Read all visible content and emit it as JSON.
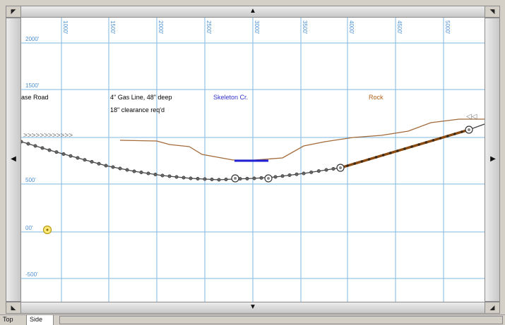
{
  "ui": {
    "tabs": [
      {
        "label": "Top",
        "active": false
      },
      {
        "label": "Side",
        "active": true
      }
    ],
    "icons": {
      "scroll_up": "triangle-up",
      "scroll_down": "triangle-down",
      "scroll_left": "triangle-left",
      "scroll_right": "triangle-right",
      "corner_tl": "corner-arrow-top-left",
      "corner_tr": "corner-arrow-top-right",
      "corner_bl": "corner-arrow-bottom-left",
      "corner_br": "corner-arrow-bottom-right"
    }
  },
  "profile": {
    "x_ticks": [
      {
        "label": "1000'",
        "x": 1000
      },
      {
        "label": "1500'",
        "x": 1500
      },
      {
        "label": "2000'",
        "x": 2000
      },
      {
        "label": "2500'",
        "x": 2500
      },
      {
        "label": "3000'",
        "x": 3000
      },
      {
        "label": "3500'",
        "x": 3500
      },
      {
        "label": "4000'",
        "x": 4000
      },
      {
        "label": "4500'",
        "x": 4500
      },
      {
        "label": "5000'",
        "x": 5000
      }
    ],
    "y_ticks": [
      {
        "label": "2000'",
        "y": 2000
      },
      {
        "label": "1500'",
        "y": 1500
      },
      {
        "label": "500'",
        "y": 500
      },
      {
        "label": "00'",
        "y": 0
      },
      {
        "label": "-500'",
        "y": -500
      }
    ],
    "annotations": [
      {
        "text": "ase Road",
        "color": "#000000"
      },
      {
        "text": "4\" Gas Line, 48\" deep",
        "color": "#000000"
      },
      {
        "text": "18\" clearance req'd",
        "color": "#000000"
      },
      {
        "text": "Skeleton Cr.",
        "color": "#3333cc"
      },
      {
        "text": "Rock",
        "color": "#b06018"
      }
    ],
    "arrow_markers": {
      "right": ">>>>>>>>>>>>",
      "left": "◁◁"
    },
    "colors": {
      "grid": "#7fb7e2",
      "ground": "#a36a3a",
      "creek": "#1f1fd8",
      "drill_path": "#444444",
      "rock_segment": "#8a4a10",
      "marker": "#d6c11a"
    }
  }
}
